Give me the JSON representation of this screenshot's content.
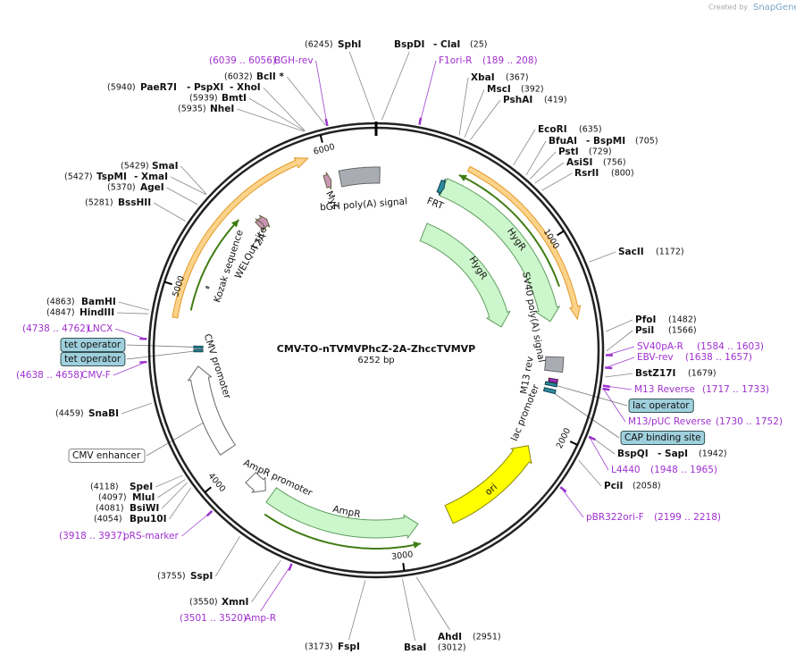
{
  "brand": "Created by",
  "brand_name": "SnapGene",
  "map": {
    "title": "CMV-TO-nTVMVPhcZ-2A-ZhccTVMVP",
    "size": "6252 bp",
    "ticks": [
      1000,
      2000,
      3000,
      4000,
      5000,
      6000
    ]
  },
  "enzymes": [
    {
      "names": [
        "SphI"
      ],
      "position": "(6245)"
    },
    {
      "names": [
        "BspDI",
        "- ClaI"
      ],
      "position": "(25)"
    },
    {
      "names": [
        "XbaI"
      ],
      "position": "(367)"
    },
    {
      "names": [
        "MscI"
      ],
      "position": "(392)"
    },
    {
      "names": [
        "PshAI"
      ],
      "position": "(419)"
    },
    {
      "names": [
        "EcoRI"
      ],
      "position": "(635)"
    },
    {
      "names": [
        "BfuAI",
        "- BspMI"
      ],
      "position": "(705)"
    },
    {
      "names": [
        "PstI"
      ],
      "position": "(729)"
    },
    {
      "names": [
        "AsiSI"
      ],
      "position": "(756)"
    },
    {
      "names": [
        "RsrII"
      ],
      "position": "(800)"
    },
    {
      "names": [
        "SacII"
      ],
      "position": "(1172)"
    },
    {
      "names": [
        "PfoI"
      ],
      "position": "(1482)"
    },
    {
      "names": [
        "PsiI"
      ],
      "position": "(1566)"
    },
    {
      "names": [
        "BstZ17I"
      ],
      "position": "(1679)"
    },
    {
      "names": [
        "BspQI",
        "- SapI"
      ],
      "position": "(1942)"
    },
    {
      "names": [
        "PciI"
      ],
      "position": "(2058)"
    },
    {
      "names": [
        "AhdI"
      ],
      "position": "(2951)"
    },
    {
      "names": [
        "BsaI"
      ],
      "position": "(3012)"
    },
    {
      "names": [
        "FspI"
      ],
      "position": "(3173)"
    },
    {
      "names": [
        "XmnI"
      ],
      "position": "(3550)"
    },
    {
      "names": [
        "SspI"
      ],
      "position": "(3755)"
    },
    {
      "names": [
        "SpeI"
      ],
      "position": "(4118)"
    },
    {
      "names": [
        "MluI"
      ],
      "position": "(4097)"
    },
    {
      "names": [
        "BsiWI"
      ],
      "position": "(4081)"
    },
    {
      "names": [
        "Bpu10I"
      ],
      "position": "(4054)"
    },
    {
      "names": [
        "SnaBI"
      ],
      "position": "(4459)"
    },
    {
      "names": [
        "BamHI"
      ],
      "position": "(4863)"
    },
    {
      "names": [
        "HindIII"
      ],
      "position": "(4847)"
    },
    {
      "names": [
        "BssHII"
      ],
      "position": "(5281)"
    },
    {
      "names": [
        "AgeI"
      ],
      "position": "(5370)"
    },
    {
      "names": [
        "TspMI",
        "- XmaI"
      ],
      "position": "(5427)"
    },
    {
      "names": [
        "SmaI"
      ],
      "position": "(5429)"
    },
    {
      "names": [
        "NheI"
      ],
      "position": "(5935)"
    },
    {
      "names": [
        "BmtI"
      ],
      "position": "(5939)"
    },
    {
      "names": [
        "PaeR7I",
        "- PspXI",
        "- XhoI"
      ],
      "position": "(5940)"
    },
    {
      "names": [
        "BclI *"
      ],
      "position": "(6032)"
    }
  ],
  "primers": [
    {
      "name": "BGH-rev",
      "range": "(6039 .. 6056)"
    },
    {
      "name": "F1ori-R",
      "range": "(189 .. 208)"
    },
    {
      "name": "SV40pA-R",
      "range": "(1584 .. 1603)"
    },
    {
      "name": "EBV-rev",
      "range": "(1638 .. 1657)"
    },
    {
      "name": "M13 Reverse",
      "range": "(1717 .. 1733)"
    },
    {
      "name": "M13/pUC Reverse",
      "range": "(1730 .. 1752)"
    },
    {
      "name": "L4440",
      "range": "(1948 .. 1965)"
    },
    {
      "name": "pBR322ori-F",
      "range": "(2199 .. 2218)"
    },
    {
      "name": "Amp-R",
      "range": "(3501 .. 3520)"
    },
    {
      "name": "pRS-marker",
      "range": "(3918 .. 3937)"
    },
    {
      "name": "CMV-F",
      "range": "(4638 .. 4658)"
    },
    {
      "name": "LNCX",
      "range": "(4738 .. 4762)"
    }
  ],
  "boxed_features": [
    "tet operator",
    "tet operator",
    "lac operator",
    "CAP binding site",
    "CMV enhancer"
  ],
  "features": [
    "Myc",
    "bGH poly(A) signal",
    "FRT",
    "HygR",
    "HygR",
    "SV40 poly(A) signal",
    "M13 rev",
    "lac promoter",
    "ori",
    "AmpR",
    "AmpR promoter",
    "CMV promoter",
    "Kozak sequence",
    "WELQut site",
    "T2A"
  ]
}
